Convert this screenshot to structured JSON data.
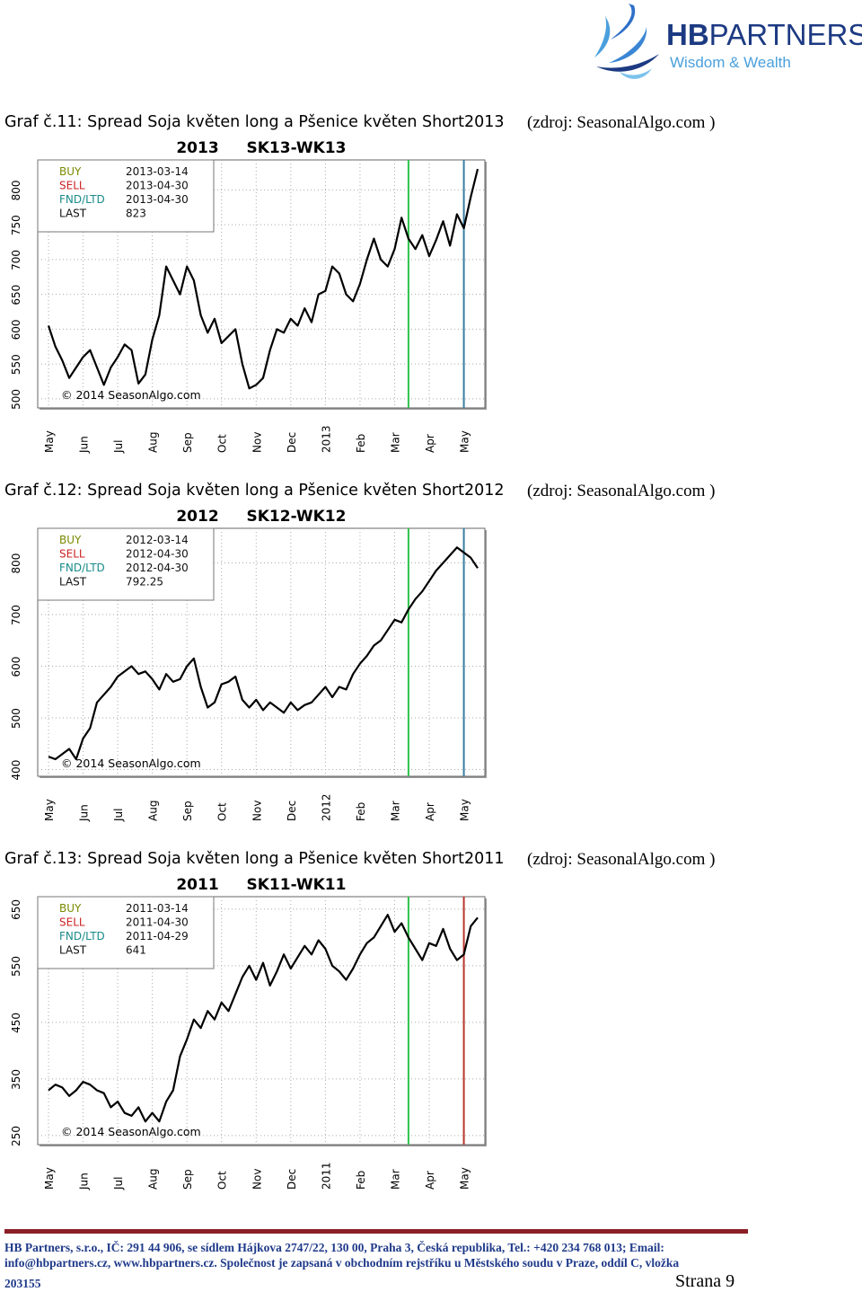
{
  "header": {
    "logo_text_bold": "HB",
    "logo_text": "PARTNERS",
    "tagline": "Wisdom & Wealth",
    "logo_color": "#1c3a82",
    "accent_color": "#4aa0dd"
  },
  "charts": [
    {
      "caption": "Graf č.11:  Spread Soja květen long a Pšenice květen Short2013",
      "source": "(zdroj: SeasonalAlgo.com )",
      "chart_data": {
        "type": "line",
        "title": "2013   SK13-WK13",
        "ylim": [
          487,
          843
        ],
        "yticks": [
          "500",
          "550",
          "600",
          "650",
          "700",
          "750",
          "800"
        ],
        "xticks": [
          "May",
          "Jun",
          "Jul",
          "Aug",
          "Sep",
          "Oct",
          "Nov",
          "Dec",
          "2013",
          "Feb",
          "Mar",
          "Apr",
          "May"
        ],
        "info": [
          [
            "BUY",
            "2013-03-14"
          ],
          [
            "SELL",
            "2013-04-30"
          ],
          [
            "FND/LTD",
            "2013-04-30"
          ],
          [
            "LAST",
            "823"
          ]
        ],
        "copyright": "© 2014 SeasonAlgo.com",
        "buy_index": 10.4,
        "sell_index": 12.0,
        "sell_color": "#3a7fa0",
        "x": [
          0,
          0.2,
          0.4,
          0.6,
          0.8,
          1,
          1.2,
          1.4,
          1.6,
          1.8,
          2,
          2.2,
          2.4,
          2.6,
          2.8,
          3,
          3.2,
          3.4,
          3.6,
          3.8,
          4,
          4.2,
          4.4,
          4.6,
          4.8,
          5,
          5.2,
          5.4,
          5.6,
          5.8,
          6,
          6.2,
          6.4,
          6.6,
          6.8,
          7,
          7.2,
          7.4,
          7.6,
          7.8,
          8,
          8.2,
          8.4,
          8.6,
          8.8,
          9,
          9.2,
          9.4,
          9.6,
          9.8,
          10,
          10.2,
          10.4,
          10.6,
          10.8,
          11,
          11.2,
          11.4,
          11.6,
          11.8,
          12,
          12.2,
          12.4
        ],
        "values": [
          605,
          575,
          555,
          530,
          545,
          560,
          570,
          545,
          520,
          545,
          560,
          578,
          570,
          522,
          535,
          585,
          620,
          690,
          670,
          650,
          690,
          670,
          620,
          595,
          615,
          580,
          590,
          600,
          550,
          515,
          520,
          530,
          570,
          600,
          595,
          615,
          605,
          630,
          610,
          650,
          655,
          690,
          680,
          650,
          640,
          665,
          700,
          730,
          700,
          690,
          715,
          760,
          730,
          715,
          735,
          705,
          728,
          755,
          720,
          765,
          745,
          790,
          830
        ]
      }
    },
    {
      "caption": "Graf č.12:  Spread Soja květen long a Pšenice květen Short2012",
      "source": "(zdroj: SeasonalAlgo.com )",
      "chart_data": {
        "type": "line",
        "title": "2012   SK12-WK12",
        "ylim": [
          387,
          867
        ],
        "yticks": [
          "400",
          "500",
          "600",
          "700",
          "800"
        ],
        "xticks": [
          "May",
          "Jun",
          "Jul",
          "Aug",
          "Sep",
          "Oct",
          "Nov",
          "Dec",
          "2012",
          "Feb",
          "Mar",
          "Apr",
          "May"
        ],
        "info": [
          [
            "BUY",
            "2012-03-14"
          ],
          [
            "SELL",
            "2012-04-30"
          ],
          [
            "FND/LTD",
            "2012-04-30"
          ],
          [
            "LAST",
            "792.25"
          ]
        ],
        "copyright": "© 2014 SeasonAlgo.com",
        "buy_index": 10.4,
        "sell_index": 12.0,
        "sell_color": "#3a7fa0",
        "x": [
          0,
          0.2,
          0.4,
          0.6,
          0.8,
          1,
          1.2,
          1.4,
          1.6,
          1.8,
          2,
          2.2,
          2.4,
          2.6,
          2.8,
          3,
          3.2,
          3.4,
          3.6,
          3.8,
          4,
          4.2,
          4.4,
          4.6,
          4.8,
          5,
          5.2,
          5.4,
          5.6,
          5.8,
          6,
          6.2,
          6.4,
          6.6,
          6.8,
          7,
          7.2,
          7.4,
          7.6,
          7.8,
          8,
          8.2,
          8.4,
          8.6,
          8.8,
          9,
          9.2,
          9.4,
          9.6,
          9.8,
          10,
          10.2,
          10.4,
          10.6,
          10.8,
          11,
          11.2,
          11.4,
          11.6,
          11.8,
          12,
          12.2,
          12.4
        ],
        "values": [
          425,
          420,
          430,
          440,
          420,
          460,
          480,
          530,
          545,
          560,
          580,
          590,
          600,
          585,
          590,
          575,
          555,
          585,
          570,
          575,
          600,
          615,
          560,
          520,
          530,
          565,
          570,
          580,
          535,
          520,
          535,
          515,
          530,
          520,
          510,
          530,
          515,
          525,
          530,
          545,
          560,
          540,
          560,
          555,
          585,
          605,
          620,
          640,
          650,
          670,
          690,
          685,
          710,
          730,
          745,
          765,
          785,
          800,
          815,
          830,
          820,
          810,
          790
        ]
      }
    },
    {
      "caption": "Graf č.13:  Spread Soja květen long a Pšenice květen Short2011",
      "source": "(zdroj: SeasonalAlgo.com )",
      "chart_data": {
        "type": "line",
        "title": "2011   SK11-WK11",
        "ylim": [
          234,
          672
        ],
        "yticks": [
          "250",
          "350",
          "450",
          "550",
          "650"
        ],
        "xticks": [
          "May",
          "Jun",
          "Jul",
          "Aug",
          "Sep",
          "Oct",
          "Nov",
          "Dec",
          "2011",
          "Feb",
          "Mar",
          "Apr",
          "May"
        ],
        "info": [
          [
            "BUY",
            "2011-03-14"
          ],
          [
            "SELL",
            "2011-04-30"
          ],
          [
            "FND/LTD",
            "2011-04-29"
          ],
          [
            "LAST",
            "641"
          ]
        ],
        "copyright": "© 2014 SeasonAlgo.com",
        "buy_index": 10.4,
        "sell_index": 12.0,
        "sell_color": "#b8352c",
        "x": [
          0,
          0.2,
          0.4,
          0.6,
          0.8,
          1,
          1.2,
          1.4,
          1.6,
          1.8,
          2,
          2.2,
          2.4,
          2.6,
          2.8,
          3,
          3.2,
          3.4,
          3.6,
          3.8,
          4,
          4.2,
          4.4,
          4.6,
          4.8,
          5,
          5.2,
          5.4,
          5.6,
          5.8,
          6,
          6.2,
          6.4,
          6.6,
          6.8,
          7,
          7.2,
          7.4,
          7.6,
          7.8,
          8,
          8.2,
          8.4,
          8.6,
          8.8,
          9,
          9.2,
          9.4,
          9.6,
          9.8,
          10,
          10.2,
          10.4,
          10.6,
          10.8,
          11,
          11.2,
          11.4,
          11.6,
          11.8,
          12,
          12.2,
          12.4
        ],
        "values": [
          330,
          340,
          335,
          320,
          330,
          345,
          340,
          330,
          325,
          300,
          310,
          290,
          285,
          300,
          275,
          290,
          275,
          310,
          330,
          390,
          420,
          455,
          440,
          470,
          455,
          485,
          470,
          500,
          530,
          550,
          525,
          555,
          515,
          540,
          570,
          545,
          565,
          585,
          570,
          595,
          580,
          550,
          540,
          525,
          545,
          570,
          590,
          600,
          620,
          640,
          610,
          625,
          600,
          580,
          560,
          590,
          585,
          615,
          580,
          560,
          570,
          620,
          635
        ]
      }
    }
  ],
  "footer": {
    "line1": "HB Partners, s.r.o., IČ: 291 44 906, se sídlem Hájkova 2747/22, 130 00, Praha 3, Česká republika, Tel.: +420 234 768 013; Email:",
    "line2": "info@hbpartners.cz, www.hbpartners.cz. Společnost je zapsaná v obchodním rejstříku u Městského soudu v Praze, oddíl C, vložka",
    "line3": "203155",
    "page": "Strana 9",
    "rule_color": "#8b1e26",
    "text_color": "#1f3a8a"
  }
}
